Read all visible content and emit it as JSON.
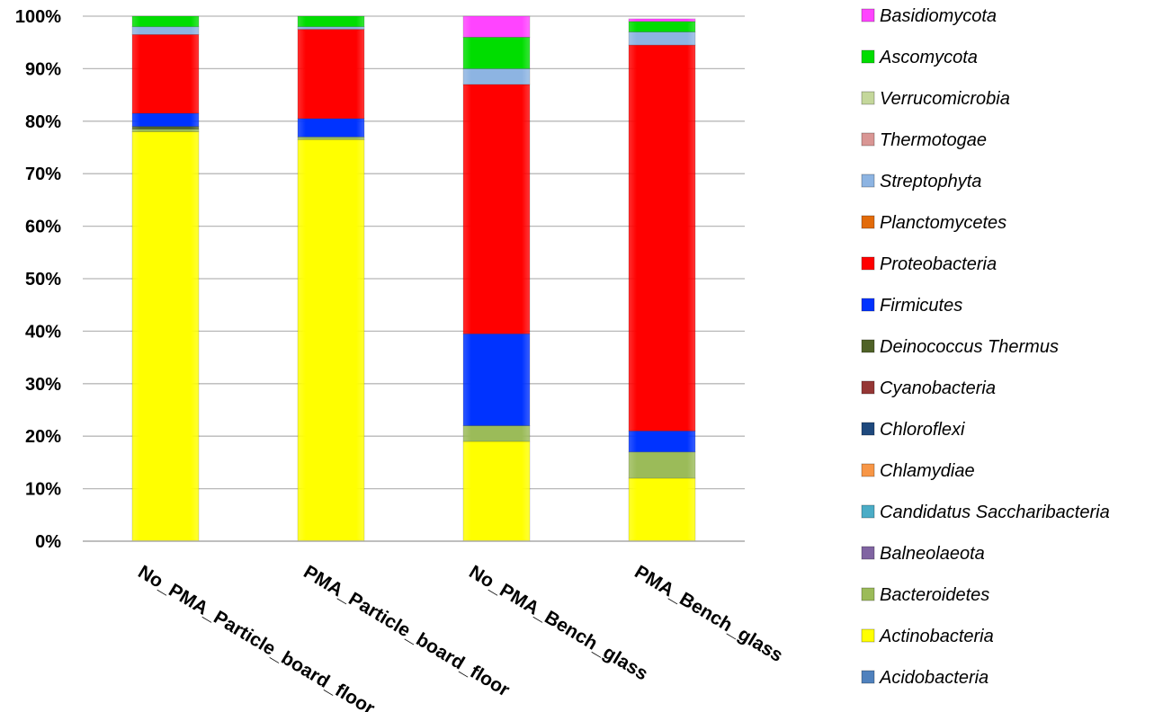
{
  "chart_data": {
    "type": "bar",
    "stacked": true,
    "percent": true,
    "categories": [
      "No_PMA_Particle_board_floor",
      "PMA_Particle_board_floor",
      "No_PMA_Bench_glass",
      "PMA_Bench_glass"
    ],
    "y_ticks": [
      "0%",
      "10%",
      "20%",
      "30%",
      "40%",
      "50%",
      "60%",
      "70%",
      "80%",
      "90%",
      "100%"
    ],
    "ylim": [
      0,
      100
    ],
    "grid": true,
    "legend_position": "right",
    "series": [
      {
        "name": "Acidobacteria",
        "color": "#4F81BD",
        "values": [
          0,
          0,
          0,
          0
        ]
      },
      {
        "name": "Actinobacteria",
        "color": "#FFFF00",
        "values": [
          78,
          76.5,
          19,
          12
        ]
      },
      {
        "name": "Bacteroidetes",
        "color": "#9BBB59",
        "values": [
          0.5,
          0.5,
          3,
          5
        ]
      },
      {
        "name": "Balneolaeota",
        "color": "#8064A2",
        "values": [
          0,
          0,
          0,
          0
        ]
      },
      {
        "name": "Candidatus Saccharibacteria",
        "color": "#4BACC6",
        "values": [
          0,
          0,
          0,
          0
        ]
      },
      {
        "name": "Chlamydiae",
        "color": "#F79646",
        "values": [
          0,
          0,
          0,
          0
        ]
      },
      {
        "name": "Chloroflexi",
        "color": "#1F497D",
        "values": [
          0,
          0,
          0,
          0
        ]
      },
      {
        "name": "Cyanobacteria",
        "color": "#953735",
        "values": [
          0,
          0,
          0,
          0
        ]
      },
      {
        "name": "Deinococcus Thermus",
        "color": "#4F6228",
        "values": [
          0.5,
          0,
          0,
          0
        ]
      },
      {
        "name": "Firmicutes",
        "color": "#0033FF",
        "values": [
          2.5,
          3.5,
          17.5,
          4
        ]
      },
      {
        "name": "Proteobacteria",
        "color": "#FF0000",
        "values": [
          15,
          17,
          47.5,
          73.5
        ]
      },
      {
        "name": "Planctomycetes",
        "color": "#E26B0A",
        "values": [
          0,
          0,
          0,
          0
        ]
      },
      {
        "name": "Streptophyta",
        "color": "#8DB4E2",
        "values": [
          1.5,
          0.5,
          3,
          2.5
        ]
      },
      {
        "name": "Thermotogae",
        "color": "#D99694",
        "values": [
          0,
          0,
          0,
          0
        ]
      },
      {
        "name": "Verrucomicrobia",
        "color": "#C4D79B",
        "values": [
          0,
          0,
          0,
          0
        ]
      },
      {
        "name": "Ascomycota",
        "color": "#00DD00",
        "values": [
          2,
          2,
          6,
          2
        ]
      },
      {
        "name": "Basidiomycota",
        "color": "#FF44FF",
        "values": [
          0,
          0,
          4,
          0.5
        ]
      }
    ],
    "legend_order": [
      "Basidiomycota",
      "Ascomycota",
      "Verrucomicrobia",
      "Thermotogae",
      "Streptophyta",
      "Planctomycetes",
      "Proteobacteria",
      "Firmicutes",
      "Deinococcus Thermus",
      "Cyanobacteria",
      "Chloroflexi",
      "Chlamydiae",
      "Candidatus Saccharibacteria",
      "Balneolaeota",
      "Bacteroidetes",
      "Actinobacteria",
      "Acidobacteria"
    ]
  }
}
